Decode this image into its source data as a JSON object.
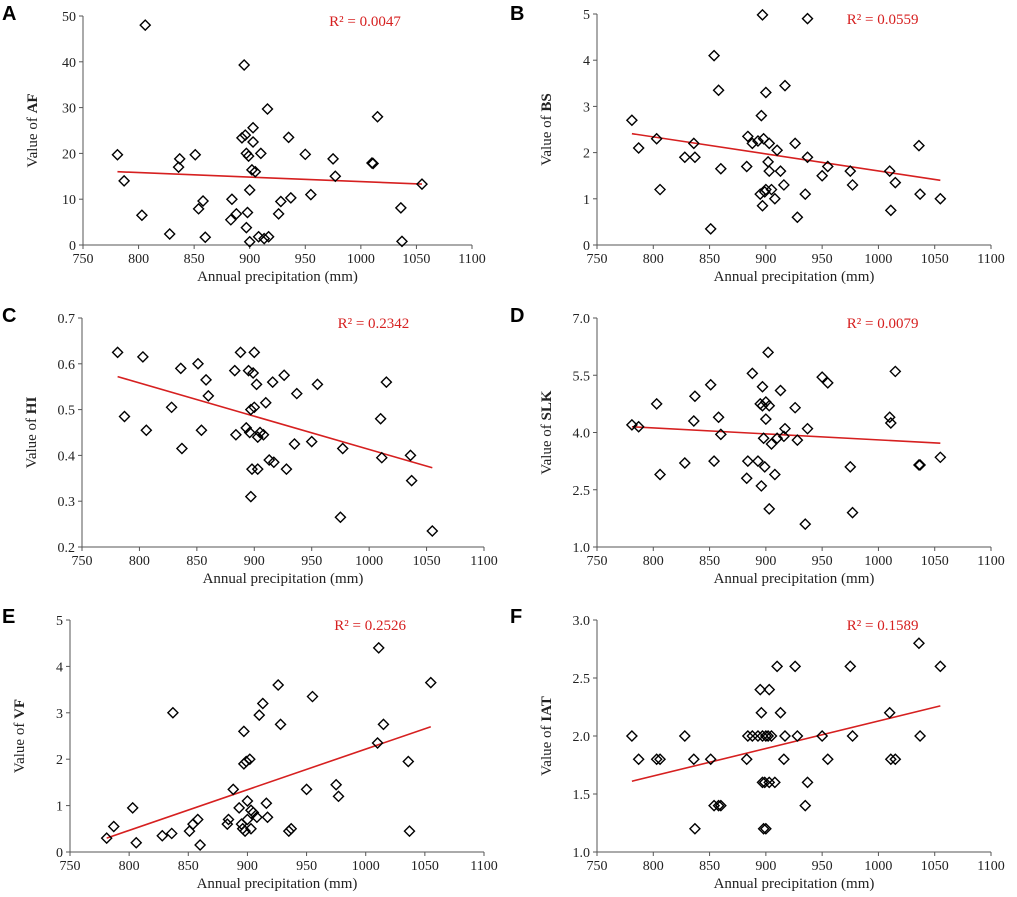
{
  "colors": {
    "trend": "#d62020",
    "r2_text": "#d62020",
    "marker": "#000000",
    "axis": "#555555"
  },
  "chart_data": [
    {
      "type": "scatter",
      "panel_label": "A",
      "xlabel": "Annual precipitation (mm)",
      "ylabel_prefix": "Value of ",
      "ylabel_var": "AF",
      "xlim": [
        750,
        1100
      ],
      "xticks": [
        "750",
        "800",
        "850",
        "900",
        "950",
        "1000",
        "1050",
        "1100"
      ],
      "ylim": [
        0,
        50
      ],
      "yticks": [
        "0",
        "10",
        "20",
        "30",
        "40",
        "50"
      ],
      "r2_label": "R² = 0.0047",
      "trendline": {
        "x": [
          781,
          1055
        ],
        "y": [
          16.0,
          13.3
        ]
      },
      "points": [
        [
          781,
          19.7
        ],
        [
          787,
          14
        ],
        [
          803,
          6.5
        ],
        [
          806,
          48
        ],
        [
          828,
          2.4
        ],
        [
          836,
          17
        ],
        [
          837,
          18.8
        ],
        [
          851,
          19.7
        ],
        [
          854,
          7.9
        ],
        [
          858,
          9.6
        ],
        [
          860,
          1.7
        ],
        [
          883,
          5.5
        ],
        [
          884,
          10
        ],
        [
          888,
          6.8
        ],
        [
          893,
          23.4
        ],
        [
          895,
          39.3
        ],
        [
          896,
          24
        ],
        [
          897,
          20
        ],
        [
          897,
          3.8
        ],
        [
          898,
          7.1
        ],
        [
          899,
          19.4
        ],
        [
          900,
          12
        ],
        [
          900,
          0.7
        ],
        [
          902,
          16.4
        ],
        [
          903,
          25.6
        ],
        [
          903,
          22.5
        ],
        [
          905,
          16
        ],
        [
          908,
          1.8
        ],
        [
          910,
          20
        ],
        [
          913,
          1.4
        ],
        [
          916,
          29.7
        ],
        [
          917,
          1.8
        ],
        [
          926,
          6.8
        ],
        [
          928,
          9.5
        ],
        [
          935,
          23.5
        ],
        [
          937,
          10.3
        ],
        [
          950,
          19.8
        ],
        [
          955,
          11
        ],
        [
          975,
          18.8
        ],
        [
          977,
          15
        ],
        [
          1010,
          17.9
        ],
        [
          1011,
          17.8
        ],
        [
          1015,
          28
        ],
        [
          1036,
          8.1
        ],
        [
          1037,
          0.8
        ],
        [
          1055,
          13.3
        ]
      ]
    },
    {
      "type": "scatter",
      "panel_label": "B",
      "xlabel": "Annual precipitation (mm)",
      "ylabel_prefix": "Value of ",
      "ylabel_var": "BS",
      "xlim": [
        750,
        1100
      ],
      "xticks": [
        "750",
        "800",
        "850",
        "900",
        "950",
        "1000",
        "1050",
        "1100"
      ],
      "ylim": [
        0,
        5
      ],
      "yticks": [
        "0",
        "1",
        "2",
        "3",
        "4",
        "5"
      ],
      "r2_label": "R² = 0.0559",
      "trendline": {
        "x": [
          781,
          1055
        ],
        "y": [
          2.41,
          1.4
        ]
      },
      "points": [
        [
          781,
          2.7
        ],
        [
          787,
          2.1
        ],
        [
          803,
          2.3
        ],
        [
          806,
          1.2
        ],
        [
          828,
          1.9
        ],
        [
          836,
          2.2
        ],
        [
          837,
          1.9
        ],
        [
          851,
          0.35
        ],
        [
          854,
          4.1
        ],
        [
          858,
          3.35
        ],
        [
          860,
          1.65
        ],
        [
          883,
          1.7
        ],
        [
          884,
          2.35
        ],
        [
          888,
          2.2
        ],
        [
          893,
          2.25
        ],
        [
          895,
          1.1
        ],
        [
          896,
          2.8
        ],
        [
          897,
          4.98
        ],
        [
          897,
          0.85
        ],
        [
          898,
          2.3
        ],
        [
          899,
          1.15
        ],
        [
          900,
          3.3
        ],
        [
          900,
          1.2
        ],
        [
          902,
          1.8
        ],
        [
          903,
          2.2
        ],
        [
          903,
          1.6
        ],
        [
          905,
          1.2
        ],
        [
          908,
          1.0
        ],
        [
          910,
          2.05
        ],
        [
          913,
          1.6
        ],
        [
          916,
          1.3
        ],
        [
          917,
          3.45
        ],
        [
          926,
          2.2
        ],
        [
          928,
          0.6
        ],
        [
          935,
          1.1
        ],
        [
          937,
          4.9
        ],
        [
          937,
          1.9
        ],
        [
          950,
          1.5
        ],
        [
          955,
          1.7
        ],
        [
          975,
          1.6
        ],
        [
          977,
          1.3
        ],
        [
          1010,
          1.6
        ],
        [
          1011,
          0.75
        ],
        [
          1015,
          1.35
        ],
        [
          1036,
          2.15
        ],
        [
          1037,
          1.1
        ],
        [
          1055,
          1.0
        ]
      ]
    },
    {
      "type": "scatter",
      "panel_label": "C",
      "xlabel": "Annual precipitation (mm)",
      "ylabel_prefix": "Value of ",
      "ylabel_var": "HI",
      "xlim": [
        750,
        1100
      ],
      "xticks": [
        "750",
        "800",
        "850",
        "900",
        "950",
        "1000",
        "1050",
        "1100"
      ],
      "ylim": [
        0.2,
        0.7
      ],
      "yticks": [
        "0.2",
        "0.3",
        "0.4",
        "0.5",
        "0.6",
        "0.7"
      ],
      "r2_label": "R² = 0.2342",
      "trendline": {
        "x": [
          781,
          1055
        ],
        "y": [
          0.572,
          0.373
        ]
      },
      "points": [
        [
          781,
          0.625
        ],
        [
          787,
          0.485
        ],
        [
          803,
          0.615
        ],
        [
          806,
          0.455
        ],
        [
          828,
          0.505
        ],
        [
          836,
          0.59
        ],
        [
          837,
          0.415
        ],
        [
          851,
          0.6
        ],
        [
          854,
          0.455
        ],
        [
          858,
          0.565
        ],
        [
          860,
          0.53
        ],
        [
          883,
          0.585
        ],
        [
          884,
          0.445
        ],
        [
          888,
          0.625
        ],
        [
          893,
          0.46
        ],
        [
          895,
          0.585
        ],
        [
          896,
          0.45
        ],
        [
          897,
          0.5
        ],
        [
          897,
          0.31
        ],
        [
          898,
          0.37
        ],
        [
          899,
          0.58
        ],
        [
          900,
          0.625
        ],
        [
          900,
          0.505
        ],
        [
          902,
          0.555
        ],
        [
          903,
          0.44
        ],
        [
          903,
          0.37
        ],
        [
          905,
          0.45
        ],
        [
          908,
          0.445
        ],
        [
          910,
          0.515
        ],
        [
          913,
          0.39
        ],
        [
          916,
          0.56
        ],
        [
          917,
          0.385
        ],
        [
          926,
          0.575
        ],
        [
          928,
          0.37
        ],
        [
          935,
          0.425
        ],
        [
          937,
          0.535
        ],
        [
          950,
          0.43
        ],
        [
          955,
          0.555
        ],
        [
          975,
          0.265
        ],
        [
          977,
          0.415
        ],
        [
          1010,
          0.48
        ],
        [
          1011,
          0.395
        ],
        [
          1015,
          0.56
        ],
        [
          1036,
          0.4
        ],
        [
          1037,
          0.345
        ],
        [
          1055,
          0.235
        ]
      ]
    },
    {
      "type": "scatter",
      "panel_label": "D",
      "xlabel": "Annual precipitation (mm)",
      "ylabel_prefix": "Value of ",
      "ylabel_var": "SLK",
      "xlim": [
        750,
        1100
      ],
      "xticks": [
        "750",
        "800",
        "850",
        "900",
        "950",
        "1000",
        "1050",
        "1100"
      ],
      "ylim": [
        1.0,
        7.0
      ],
      "yticks": [
        "1.0",
        "2.5",
        "4.0",
        "5.5",
        "7.0"
      ],
      "r2_label": "R² = 0.0079",
      "trendline": {
        "x": [
          781,
          1055
        ],
        "y": [
          4.15,
          3.72
        ]
      },
      "points": [
        [
          781,
          4.2
        ],
        [
          787,
          4.15
        ],
        [
          803,
          4.75
        ],
        [
          806,
          2.9
        ],
        [
          828,
          3.2
        ],
        [
          836,
          4.3
        ],
        [
          837,
          4.95
        ],
        [
          851,
          5.25
        ],
        [
          854,
          3.25
        ],
        [
          858,
          4.4
        ],
        [
          860,
          3.95
        ],
        [
          883,
          2.8
        ],
        [
          884,
          3.25
        ],
        [
          888,
          5.55
        ],
        [
          893,
          3.25
        ],
        [
          895,
          4.75
        ],
        [
          896,
          2.6
        ],
        [
          897,
          4.7
        ],
        [
          897,
          5.2
        ],
        [
          898,
          3.85
        ],
        [
          899,
          3.1
        ],
        [
          900,
          4.8
        ],
        [
          900,
          4.35
        ],
        [
          902,
          6.1
        ],
        [
          903,
          2.0
        ],
        [
          903,
          4.7
        ],
        [
          905,
          3.7
        ],
        [
          908,
          2.9
        ],
        [
          910,
          3.85
        ],
        [
          913,
          5.1
        ],
        [
          916,
          3.9
        ],
        [
          917,
          4.1
        ],
        [
          926,
          4.65
        ],
        [
          928,
          3.8
        ],
        [
          935,
          1.6
        ],
        [
          937,
          4.1
        ],
        [
          950,
          5.45
        ],
        [
          955,
          5.3
        ],
        [
          975,
          3.1
        ],
        [
          977,
          1.9
        ],
        [
          1010,
          4.4
        ],
        [
          1011,
          4.25
        ],
        [
          1015,
          5.6
        ],
        [
          1036,
          3.15
        ],
        [
          1037,
          3.15
        ],
        [
          1055,
          3.35
        ]
      ]
    },
    {
      "type": "scatter",
      "panel_label": "E",
      "xlabel": "Annual precipitation (mm)",
      "ylabel_prefix": "Value of ",
      "ylabel_var": "VF",
      "xlim": [
        750,
        1100
      ],
      "xticks": [
        "750",
        "800",
        "850",
        "900",
        "950",
        "1000",
        "1050",
        "1100"
      ],
      "ylim": [
        0,
        5
      ],
      "yticks": [
        "0",
        "1",
        "2",
        "3",
        "4",
        "5"
      ],
      "r2_label": "R² = 0.2526",
      "trendline": {
        "x": [
          781,
          1055
        ],
        "y": [
          0.3,
          2.7
        ]
      },
      "points": [
        [
          781,
          0.3
        ],
        [
          787,
          0.55
        ],
        [
          803,
          0.95
        ],
        [
          806,
          0.2
        ],
        [
          828,
          0.35
        ],
        [
          836,
          0.4
        ],
        [
          837,
          3.0
        ],
        [
          851,
          0.45
        ],
        [
          854,
          0.6
        ],
        [
          858,
          0.7
        ],
        [
          860,
          0.15
        ],
        [
          883,
          0.6
        ],
        [
          884,
          0.7
        ],
        [
          888,
          1.35
        ],
        [
          893,
          0.95
        ],
        [
          895,
          0.6
        ],
        [
          896,
          0.5
        ],
        [
          897,
          2.6
        ],
        [
          897,
          1.9
        ],
        [
          898,
          0.45
        ],
        [
          899,
          1.95
        ],
        [
          900,
          1.1
        ],
        [
          900,
          0.7
        ],
        [
          902,
          2.0
        ],
        [
          903,
          0.9
        ],
        [
          903,
          0.5
        ],
        [
          905,
          0.85
        ],
        [
          908,
          0.75
        ],
        [
          910,
          2.95
        ],
        [
          913,
          3.2
        ],
        [
          916,
          1.05
        ],
        [
          917,
          0.75
        ],
        [
          926,
          3.6
        ],
        [
          928,
          2.75
        ],
        [
          935,
          0.45
        ],
        [
          937,
          0.5
        ],
        [
          950,
          1.35
        ],
        [
          955,
          3.35
        ],
        [
          975,
          1.45
        ],
        [
          977,
          1.2
        ],
        [
          1010,
          2.35
        ],
        [
          1011,
          4.4
        ],
        [
          1015,
          2.75
        ],
        [
          1036,
          1.95
        ],
        [
          1037,
          0.45
        ],
        [
          1055,
          3.65
        ]
      ]
    },
    {
      "type": "scatter",
      "panel_label": "F",
      "xlabel": "Annual precipitation (mm)",
      "ylabel_prefix": "Value of ",
      "ylabel_var": "IAT",
      "xlim": [
        750,
        1100
      ],
      "xticks": [
        "750",
        "800",
        "850",
        "900",
        "950",
        "1000",
        "1050",
        "1100"
      ],
      "ylim": [
        1.0,
        3.0
      ],
      "yticks": [
        "1.0",
        "1.5",
        "2.0",
        "2.5",
        "3.0"
      ],
      "r2_label": "R² = 0.1589",
      "trendline": {
        "x": [
          781,
          1055
        ],
        "y": [
          1.61,
          2.26
        ]
      },
      "points": [
        [
          781,
          2.0
        ],
        [
          787,
          1.8
        ],
        [
          803,
          1.8
        ],
        [
          806,
          1.8
        ],
        [
          828,
          2.0
        ],
        [
          836,
          1.8
        ],
        [
          837,
          1.2
        ],
        [
          851,
          1.8
        ],
        [
          854,
          1.4
        ],
        [
          858,
          1.4
        ],
        [
          860,
          1.4
        ],
        [
          883,
          1.8
        ],
        [
          884,
          2.0
        ],
        [
          888,
          2.0
        ],
        [
          893,
          2.0
        ],
        [
          895,
          2.4
        ],
        [
          896,
          2.2
        ],
        [
          897,
          1.6
        ],
        [
          897,
          2.0
        ],
        [
          898,
          1.2
        ],
        [
          899,
          1.6
        ],
        [
          900,
          2.0
        ],
        [
          900,
          1.2
        ],
        [
          902,
          2.0
        ],
        [
          903,
          1.6
        ],
        [
          903,
          2.4
        ],
        [
          905,
          2.0
        ],
        [
          908,
          1.6
        ],
        [
          910,
          2.6
        ],
        [
          913,
          2.2
        ],
        [
          916,
          1.8
        ],
        [
          917,
          2.0
        ],
        [
          926,
          2.6
        ],
        [
          928,
          2.0
        ],
        [
          935,
          1.4
        ],
        [
          937,
          1.6
        ],
        [
          950,
          2.0
        ],
        [
          955,
          1.8
        ],
        [
          975,
          2.6
        ],
        [
          977,
          2.0
        ],
        [
          1010,
          2.2
        ],
        [
          1011,
          1.8
        ],
        [
          1015,
          1.8
        ],
        [
          1036,
          2.8
        ],
        [
          1037,
          2.0
        ],
        [
          1055,
          2.6
        ]
      ]
    }
  ]
}
